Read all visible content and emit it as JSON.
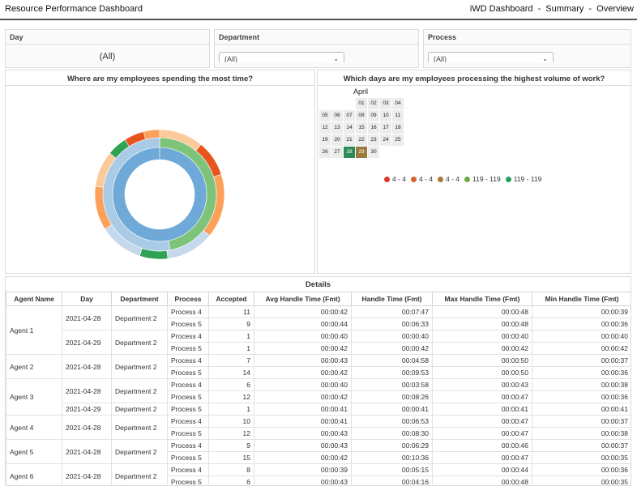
{
  "header": {
    "title": "Resource Performance Dashboard",
    "breadcrumb": [
      "iWD Dashboard",
      "-",
      "Summary",
      "-",
      "Overview"
    ]
  },
  "filters": {
    "day": {
      "label": "Day",
      "value": "(All)"
    },
    "department": {
      "label": "Department",
      "value": "(All)"
    },
    "process": {
      "label": "Process",
      "value": "(All)"
    }
  },
  "panels": {
    "time_spent_title": "Where are my employees spending the most time?",
    "volume_title": "Which days are my employees processing the highest volume of work?"
  },
  "calendar": {
    "month": "April",
    "weeks": [
      [
        "",
        "",
        "",
        "01",
        "02",
        "03",
        "04"
      ],
      [
        "05",
        "06",
        "07",
        "08",
        "09",
        "10",
        "11"
      ],
      [
        "12",
        "13",
        "14",
        "15",
        "16",
        "17",
        "18"
      ],
      [
        "19",
        "20",
        "21",
        "22",
        "23",
        "24",
        "25"
      ],
      [
        "26",
        "27",
        "28",
        "29",
        "30",
        "",
        ""
      ]
    ],
    "highlights": {
      "28": "#2e8b57",
      "29": "#9a7a3c"
    }
  },
  "legend": [
    {
      "label": "4 - 4",
      "color": "#d93a2b"
    },
    {
      "label": "4 - 4",
      "color": "#d8632a"
    },
    {
      "label": "4 - 4",
      "color": "#a87a3a"
    },
    {
      "label": "119 - 119",
      "color": "#6fa84a"
    },
    {
      "label": "119 - 119",
      "color": "#23a15a"
    }
  ],
  "donut": {
    "outer_ring": [
      {
        "color": "#fbc99a",
        "value": 11
      },
      {
        "color": "#e8541e",
        "value": 9
      },
      {
        "color": "#fca05a",
        "value": 16
      },
      {
        "color": "#c5d8ee",
        "value": 12
      },
      {
        "color": "#2ea152",
        "value": 7
      },
      {
        "color": "#c5d8ee",
        "value": 11
      },
      {
        "color": "#fca05a",
        "value": 11
      },
      {
        "color": "#fbc99a",
        "value": 9
      },
      {
        "color": "#2ea152",
        "value": 5
      },
      {
        "color": "#e8541e",
        "value": 5
      },
      {
        "color": "#fca05a",
        "value": 4
      }
    ],
    "middle_ring": [
      {
        "color": "#7dc47a",
        "value": 47
      },
      {
        "color": "#a9cbe6",
        "value": 53
      }
    ],
    "inner_ring": [
      {
        "color": "#6fa9d8",
        "value": 100
      }
    ]
  },
  "details": {
    "title": "Details",
    "columns": [
      "Agent Name",
      "Day",
      "Department",
      "Process",
      "Accepted",
      "Avg Handle Time (Fmt)",
      "Handle Time (Fmt)",
      "Max Handle Time (Fmt)",
      "Min Handle Time (Fmt)"
    ],
    "agents": [
      {
        "name": "Agent 1",
        "days": [
          {
            "day": "2021-04-28",
            "dept": "Department 2",
            "rows": [
              {
                "process": "Process 4",
                "accepted": "11",
                "avg": "00:00:42",
                "handle": "00:07:47",
                "max": "00:00:48",
                "min": "00:00:39"
              },
              {
                "process": "Process 5",
                "accepted": "9",
                "avg": "00:00:44",
                "handle": "00:06:33",
                "max": "00:00:48",
                "min": "00:00:36"
              }
            ]
          },
          {
            "day": "2021-04-29",
            "dept": "Department 2",
            "rows": [
              {
                "process": "Process 4",
                "accepted": "1",
                "avg": "00:00:40",
                "handle": "00:00:40",
                "max": "00:00:40",
                "min": "00:00:40"
              },
              {
                "process": "Process 5",
                "accepted": "1",
                "avg": "00:00:42",
                "handle": "00:00:42",
                "max": "00:00:42",
                "min": "00:00:42"
              }
            ]
          }
        ]
      },
      {
        "name": "Agent 2",
        "days": [
          {
            "day": "2021-04-28",
            "dept": "Department 2",
            "rows": [
              {
                "process": "Process 4",
                "accepted": "7",
                "avg": "00:00:43",
                "handle": "00:04:58",
                "max": "00:00:50",
                "min": "00:00:37"
              },
              {
                "process": "Process 5",
                "accepted": "14",
                "avg": "00:00:42",
                "handle": "00:09:53",
                "max": "00:00:50",
                "min": "00:00:36"
              }
            ]
          }
        ]
      },
      {
        "name": "Agent 3",
        "days": [
          {
            "day": "2021-04-28",
            "dept": "Department 2",
            "rows": [
              {
                "process": "Process 4",
                "accepted": "6",
                "avg": "00:00:40",
                "handle": "00:03:58",
                "max": "00:00:43",
                "min": "00:00:38"
              },
              {
                "process": "Process 5",
                "accepted": "12",
                "avg": "00:00:42",
                "handle": "00:08:26",
                "max": "00:00:47",
                "min": "00:00:36"
              }
            ]
          },
          {
            "day": "2021-04-29",
            "dept": "Department 2",
            "rows": [
              {
                "process": "Process 5",
                "accepted": "1",
                "avg": "00:00:41",
                "handle": "00:00:41",
                "max": "00:00:41",
                "min": "00:00:41"
              }
            ]
          }
        ]
      },
      {
        "name": "Agent 4",
        "days": [
          {
            "day": "2021-04-28",
            "dept": "Department 2",
            "rows": [
              {
                "process": "Process 4",
                "accepted": "10",
                "avg": "00:00:41",
                "handle": "00:06:53",
                "max": "00:00:47",
                "min": "00:00:37"
              },
              {
                "process": "Process 5",
                "accepted": "12",
                "avg": "00:00:43",
                "handle": "00:08:30",
                "max": "00:00:47",
                "min": "00:00:38"
              }
            ]
          }
        ]
      },
      {
        "name": "Agent 5",
        "days": [
          {
            "day": "2021-04-28",
            "dept": "Department 2",
            "rows": [
              {
                "process": "Process 4",
                "accepted": "9",
                "avg": "00:00:43",
                "handle": "00:06:29",
                "max": "00:00:46",
                "min": "00:00:37"
              },
              {
                "process": "Process 5",
                "accepted": "15",
                "avg": "00:00:42",
                "handle": "00:10:36",
                "max": "00:00:47",
                "min": "00:00:35"
              }
            ]
          }
        ]
      },
      {
        "name": "Agent 6",
        "days": [
          {
            "day": "2021-04-28",
            "dept": "Department 2",
            "rows": [
              {
                "process": "Process 4",
                "accepted": "8",
                "avg": "00:00:39",
                "handle": "00:05:15",
                "max": "00:00:44",
                "min": "00:00:36"
              },
              {
                "process": "Process 5",
                "accepted": "6",
                "avg": "00:00:43",
                "handle": "00:04:16",
                "max": "00:00:48",
                "min": "00:00:35"
              }
            ]
          }
        ]
      }
    ]
  }
}
